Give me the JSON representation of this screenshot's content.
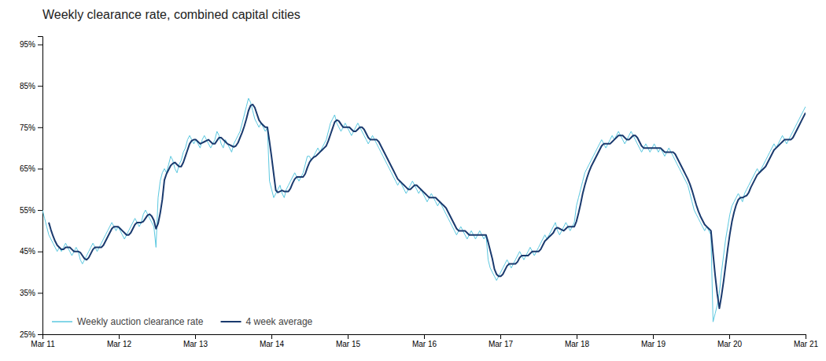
{
  "chart_data": {
    "type": "line",
    "title": "Weekly clearance rate, combined capital cities",
    "xlim": [
      0,
      363
    ],
    "xticks": [
      {
        "value": 0,
        "label": "Mar 11"
      },
      {
        "value": 36.3,
        "label": "Mar 12"
      },
      {
        "value": 72.6,
        "label": "Mar 13"
      },
      {
        "value": 108.9,
        "label": "Mar 14"
      },
      {
        "value": 145.2,
        "label": "Mar 15"
      },
      {
        "value": 181.5,
        "label": "Mar 16"
      },
      {
        "value": 217.8,
        "label": "Mar 17"
      },
      {
        "value": 254.1,
        "label": "Mar 18"
      },
      {
        "value": 290.4,
        "label": "Mar 19"
      },
      {
        "value": 326.7,
        "label": "Mar 20"
      },
      {
        "value": 363,
        "label": "Mar 21"
      }
    ],
    "ylim": [
      0.25,
      0.97
    ],
    "yticks": [
      {
        "value": 0.25,
        "label": "25%"
      },
      {
        "value": 0.35,
        "label": "35%"
      },
      {
        "value": 0.45,
        "label": "45%"
      },
      {
        "value": 0.55,
        "label": "55%"
      },
      {
        "value": 0.65,
        "label": "65%"
      },
      {
        "value": 0.75,
        "label": "75%"
      },
      {
        "value": 0.85,
        "label": "85%"
      },
      {
        "value": 0.95,
        "label": "95%"
      }
    ],
    "grid": false,
    "legend": "lower left",
    "series": [
      {
        "name": "Weekly auction clearance rate",
        "color": "#5bc8e0",
        "values": [
          0.55,
          0.53,
          0.51,
          0.49,
          0.48,
          0.47,
          0.46,
          0.45,
          0.46,
          0.45,
          0.46,
          0.47,
          0.46,
          0.45,
          0.44,
          0.45,
          0.46,
          0.45,
          0.43,
          0.42,
          0.43,
          0.44,
          0.45,
          0.46,
          0.47,
          0.46,
          0.45,
          0.46,
          0.47,
          0.48,
          0.49,
          0.5,
          0.51,
          0.52,
          0.51,
          0.5,
          0.51,
          0.5,
          0.49,
          0.48,
          0.49,
          0.5,
          0.51,
          0.52,
          0.53,
          0.52,
          0.51,
          0.52,
          0.54,
          0.55,
          0.54,
          0.53,
          0.52,
          0.51,
          0.46,
          0.58,
          0.62,
          0.64,
          0.65,
          0.64,
          0.66,
          0.68,
          0.67,
          0.65,
          0.64,
          0.66,
          0.67,
          0.69,
          0.7,
          0.72,
          0.73,
          0.72,
          0.71,
          0.72,
          0.71,
          0.7,
          0.72,
          0.73,
          0.72,
          0.71,
          0.7,
          0.71,
          0.72,
          0.74,
          0.73,
          0.71,
          0.7,
          0.72,
          0.71,
          0.7,
          0.69,
          0.71,
          0.72,
          0.73,
          0.74,
          0.76,
          0.78,
          0.8,
          0.82,
          0.81,
          0.79,
          0.77,
          0.76,
          0.75,
          0.76,
          0.75,
          0.74,
          0.75,
          0.62,
          0.6,
          0.58,
          0.59,
          0.6,
          0.61,
          0.59,
          0.58,
          0.6,
          0.61,
          0.62,
          0.63,
          0.64,
          0.63,
          0.62,
          0.63,
          0.64,
          0.66,
          0.68,
          0.68,
          0.67,
          0.68,
          0.69,
          0.7,
          0.69,
          0.7,
          0.71,
          0.72,
          0.74,
          0.76,
          0.77,
          0.78,
          0.76,
          0.75,
          0.74,
          0.75,
          0.76,
          0.75,
          0.74,
          0.73,
          0.74,
          0.75,
          0.76,
          0.75,
          0.74,
          0.73,
          0.72,
          0.71,
          0.72,
          0.73,
          0.72,
          0.71,
          0.7,
          0.69,
          0.68,
          0.67,
          0.66,
          0.65,
          0.64,
          0.63,
          0.62,
          0.61,
          0.62,
          0.61,
          0.6,
          0.59,
          0.6,
          0.61,
          0.62,
          0.61,
          0.6,
          0.59,
          0.6,
          0.59,
          0.58,
          0.57,
          0.58,
          0.59,
          0.58,
          0.57,
          0.56,
          0.57,
          0.56,
          0.55,
          0.54,
          0.53,
          0.52,
          0.51,
          0.5,
          0.49,
          0.5,
          0.51,
          0.5,
          0.49,
          0.48,
          0.49,
          0.5,
          0.49,
          0.48,
          0.49,
          0.5,
          0.49,
          0.48,
          0.49,
          0.43,
          0.41,
          0.4,
          0.39,
          0.38,
          0.39,
          0.4,
          0.41,
          0.42,
          0.43,
          0.42,
          0.41,
          0.42,
          0.43,
          0.44,
          0.45,
          0.44,
          0.43,
          0.44,
          0.45,
          0.46,
          0.45,
          0.44,
          0.45,
          0.46,
          0.47,
          0.48,
          0.49,
          0.48,
          0.49,
          0.5,
          0.51,
          0.52,
          0.5,
          0.49,
          0.5,
          0.51,
          0.52,
          0.51,
          0.5,
          0.51,
          0.52,
          0.56,
          0.58,
          0.6,
          0.62,
          0.64,
          0.65,
          0.66,
          0.67,
          0.68,
          0.69,
          0.7,
          0.71,
          0.72,
          0.71,
          0.7,
          0.71,
          0.72,
          0.73,
          0.72,
          0.73,
          0.74,
          0.73,
          0.72,
          0.71,
          0.72,
          0.73,
          0.74,
          0.73,
          0.72,
          0.71,
          0.7,
          0.69,
          0.7,
          0.71,
          0.7,
          0.69,
          0.7,
          0.71,
          0.7,
          0.69,
          0.7,
          0.69,
          0.68,
          0.69,
          0.7,
          0.69,
          0.68,
          0.67,
          0.66,
          0.65,
          0.64,
          0.63,
          0.62,
          0.61,
          0.59,
          0.57,
          0.55,
          0.54,
          0.53,
          0.52,
          0.51,
          0.5,
          0.51,
          0.5,
          0.49,
          0.28,
          0.3,
          0.32,
          0.35,
          0.4,
          0.44,
          0.48,
          0.51,
          0.54,
          0.56,
          0.57,
          0.58,
          0.59,
          0.58,
          0.57,
          0.59,
          0.6,
          0.61,
          0.62,
          0.63,
          0.64,
          0.65,
          0.64,
          0.65,
          0.66,
          0.67,
          0.68,
          0.69,
          0.7,
          0.71,
          0.7,
          0.71,
          0.72,
          0.73,
          0.72,
          0.71,
          0.72,
          0.73,
          0.74,
          0.75,
          0.76,
          0.77,
          0.78,
          0.79,
          0.8
        ]
      },
      {
        "name": "4 week average",
        "color": "#1a3a6e",
        "values": [
          null,
          null,
          null,
          0.52,
          0.5025,
          0.4875,
          0.475,
          0.465,
          0.46,
          0.455,
          0.455,
          0.46,
          0.46,
          0.46,
          0.455,
          0.45,
          0.45,
          0.45,
          0.4475,
          0.44,
          0.4325,
          0.43,
          0.435,
          0.445,
          0.455,
          0.46,
          0.46,
          0.46,
          0.46,
          0.465,
          0.475,
          0.485,
          0.495,
          0.505,
          0.51,
          0.51,
          0.51,
          0.505,
          0.5,
          0.495,
          0.49,
          0.49,
          0.495,
          0.505,
          0.515,
          0.52,
          0.52,
          0.52,
          0.5225,
          0.53,
          0.5375,
          0.54,
          0.535,
          0.525,
          0.505,
          0.5175,
          0.5425,
          0.575,
          0.6225,
          0.6375,
          0.6475,
          0.6575,
          0.6625,
          0.665,
          0.66,
          0.655,
          0.655,
          0.665,
          0.68,
          0.695,
          0.71,
          0.7175,
          0.72,
          0.72,
          0.715,
          0.71,
          0.7125,
          0.715,
          0.7175,
          0.72,
          0.715,
          0.71,
          0.71,
          0.7175,
          0.725,
          0.725,
          0.72,
          0.715,
          0.71,
          0.7075,
          0.705,
          0.7025,
          0.705,
          0.7125,
          0.725,
          0.7375,
          0.7525,
          0.77,
          0.79,
          0.8025,
          0.805,
          0.7975,
          0.7825,
          0.7675,
          0.76,
          0.755,
          0.75,
          0.75,
          0.715,
          0.6775,
          0.6375,
          0.5975,
          0.5925,
          0.595,
          0.5975,
          0.595,
          0.595,
          0.595,
          0.6025,
          0.615,
          0.625,
          0.63,
          0.63,
          0.63,
          0.63,
          0.6375,
          0.6525,
          0.665,
          0.6725,
          0.6775,
          0.68,
          0.685,
          0.69,
          0.695,
          0.7,
          0.705,
          0.7175,
          0.7325,
          0.7475,
          0.7625,
          0.7675,
          0.765,
          0.7575,
          0.75,
          0.75,
          0.75,
          0.75,
          0.745,
          0.74,
          0.74,
          0.745,
          0.75,
          0.75,
          0.745,
          0.735,
          0.725,
          0.72,
          0.72,
          0.72,
          0.72,
          0.715,
          0.705,
          0.695,
          0.685,
          0.675,
          0.665,
          0.655,
          0.645,
          0.635,
          0.625,
          0.62,
          0.615,
          0.61,
          0.605,
          0.6,
          0.6,
          0.605,
          0.61,
          0.61,
          0.605,
          0.6,
          0.595,
          0.59,
          0.585,
          0.58,
          0.58,
          0.58,
          0.58,
          0.575,
          0.57,
          0.565,
          0.56,
          0.555,
          0.545,
          0.535,
          0.525,
          0.515,
          0.505,
          0.5,
          0.5,
          0.5,
          0.5,
          0.495,
          0.49,
          0.49,
          0.49,
          0.49,
          0.49,
          0.49,
          0.49,
          0.49,
          0.49,
          0.4725,
          0.4525,
          0.4325,
          0.4075,
          0.395,
          0.39,
          0.39,
          0.395,
          0.405,
          0.415,
          0.42,
          0.42,
          0.42,
          0.42,
          0.425,
          0.435,
          0.44,
          0.44,
          0.44,
          0.44,
          0.445,
          0.45,
          0.45,
          0.45,
          0.45,
          0.455,
          0.465,
          0.475,
          0.48,
          0.485,
          0.49,
          0.495,
          0.505,
          0.5075,
          0.505,
          0.5025,
          0.5,
          0.505,
          0.51,
          0.51,
          0.51,
          0.51,
          0.5225,
          0.5425,
          0.565,
          0.59,
          0.61,
          0.6275,
          0.6425,
          0.655,
          0.665,
          0.675,
          0.685,
          0.695,
          0.705,
          0.71,
          0.71,
          0.71,
          0.71,
          0.715,
          0.72,
          0.725,
          0.73,
          0.73,
          0.73,
          0.725,
          0.72,
          0.72,
          0.725,
          0.73,
          0.73,
          0.725,
          0.715,
          0.705,
          0.7,
          0.7,
          0.7,
          0.7,
          0.7,
          0.7,
          0.7,
          0.7,
          0.7,
          0.695,
          0.69,
          0.69,
          0.69,
          0.69,
          0.69,
          0.685,
          0.675,
          0.665,
          0.655,
          0.645,
          0.635,
          0.625,
          0.6125,
          0.5975,
          0.58,
          0.5625,
          0.5475,
          0.535,
          0.525,
          0.515,
          0.51,
          0.505,
          0.5,
          0.445,
          0.3925,
          0.3475,
          0.3125,
          0.3425,
          0.3775,
          0.4175,
          0.4575,
          0.4925,
          0.5225,
          0.545,
          0.5625,
          0.575,
          0.58,
          0.58,
          0.5825,
          0.585,
          0.5925,
          0.605,
          0.615,
          0.625,
          0.635,
          0.64,
          0.645,
          0.65,
          0.655,
          0.665,
          0.675,
          0.685,
          0.695,
          0.7,
          0.705,
          0.71,
          0.715,
          0.72,
          0.72,
          0.72,
          0.72,
          0.725,
          0.735,
          0.745,
          0.755,
          0.765,
          0.775,
          0.785
        ]
      }
    ]
  }
}
